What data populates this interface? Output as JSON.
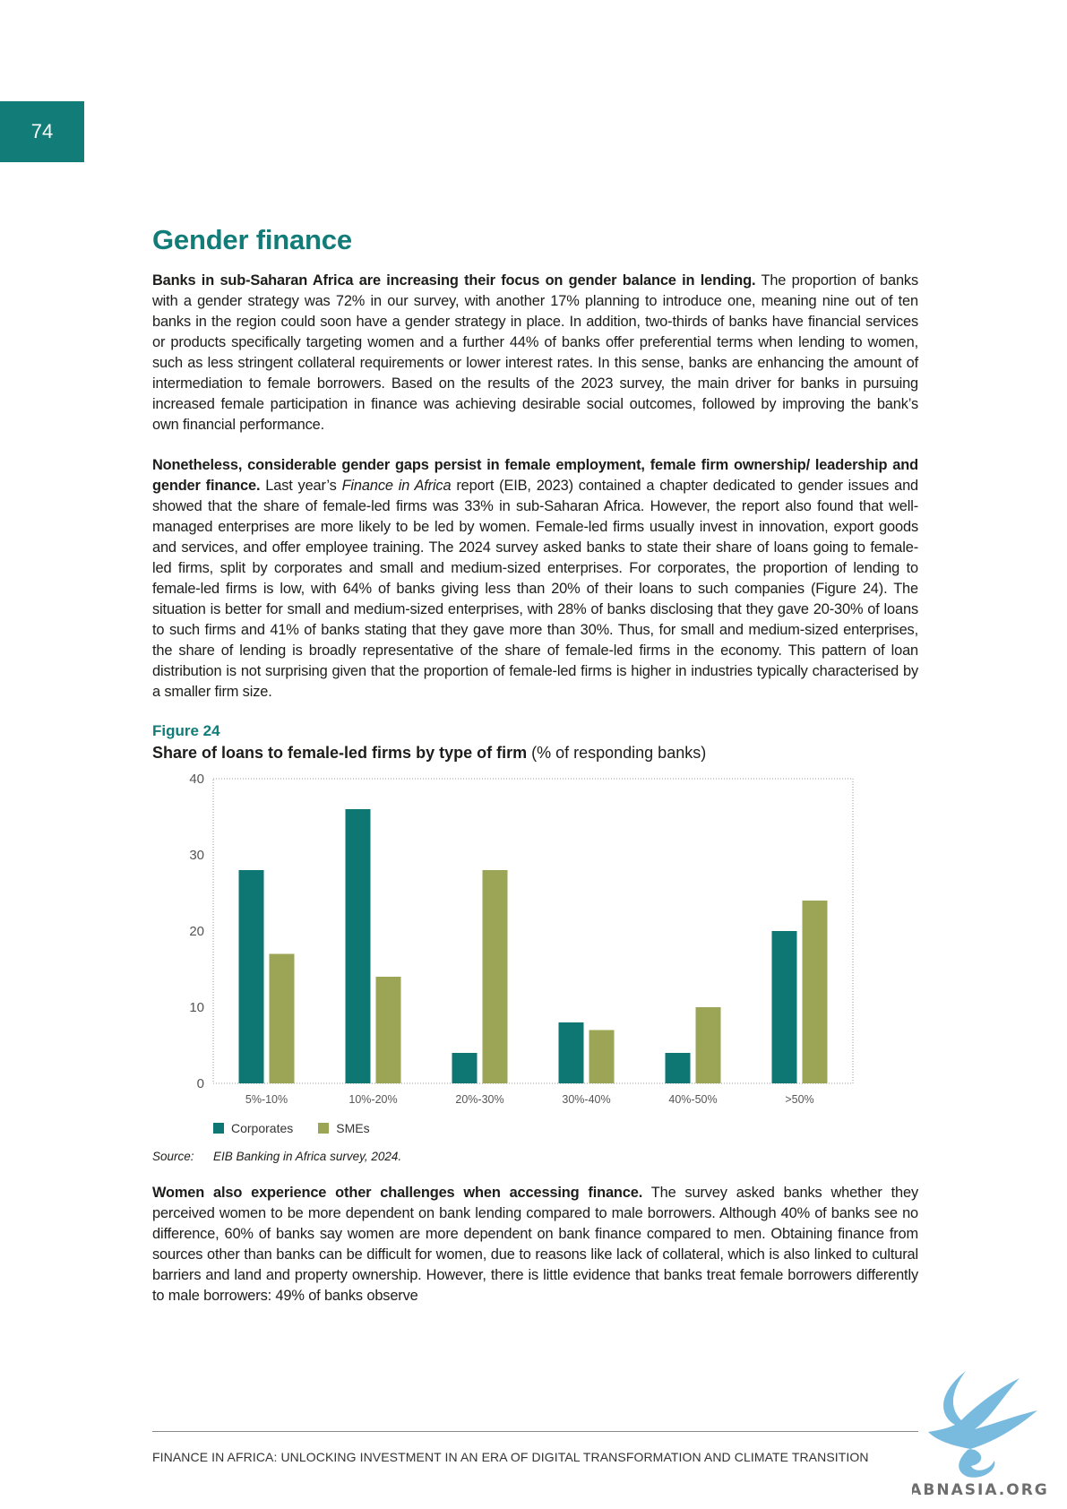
{
  "page_number": "74",
  "section_title": "Gender finance",
  "paragraphs": [
    {
      "lead": "Banks in sub-Saharan Africa are increasing their focus on gender balance in lending.",
      "text": " The proportion of banks with a gender strategy was 72% in our survey, with another 17% planning to introduce one, meaning nine out of ten banks in the region could soon have a gender strategy in place. In addition, two-thirds of banks have financial services or products specifically targeting women and a further 44% of banks offer preferential terms when lending to women, such as less stringent collateral requirements or lower interest rates. In this sense, banks are enhancing the amount of intermediation to female borrowers. Based on the results of the 2023 survey, the main driver for banks in pursuing increased female participation in finance was achieving desirable social outcomes, followed by improving the bank’s own financial performance."
    },
    {
      "lead": "Nonetheless, considerable gender gaps persist in female employment, female firm ownership/ leadership and gender finance.",
      "text_before": " Last year’s ",
      "italic": "Finance in Africa",
      "text_after": " report (EIB, 2023) contained a chapter dedicated to gender issues and showed that the share of female-led firms was 33% in sub-Saharan Africa. However, the report also found that well-managed enterprises are more likely to be led by women. Female-led firms usually invest in innovation, export goods and services, and offer employee training. The 2024 survey asked banks to state their share of loans going to female-led firms, split by corporates and small and medium-sized enterprises. For corporates, the proportion of lending to female-led firms is low, with 64% of banks giving less than 20% of their loans to such companies (Figure 24). The situation is better for small and medium-sized enterprises, with 28% of banks disclosing that they gave 20-30% of loans to such firms and 41% of banks stating that they gave more than 30%. Thus, for small and medium-sized enterprises, the share of lending is broadly representative of the share of female-led firms in the economy. This pattern of loan distribution is not surprising given that the proportion of female-led firms is higher in industries typically characterised by a smaller firm size."
    },
    {
      "lead": "Women also experience other challenges when accessing finance.",
      "text": " The survey asked banks whether they perceived women to be more dependent on bank lending compared to male borrowers. Although 40% of banks see no difference, 60% of banks say women are more dependent on bank finance compared to men. Obtaining finance from sources other than banks can be difficult for women, due to reasons like lack of collateral, which is also linked to cultural barriers and land and property ownership. However, there is little evidence that banks treat female borrowers differently to male borrowers: 49% of banks observe"
    }
  ],
  "figure": {
    "label": "Figure 24",
    "title_bold": "Share of loans to female-led firms by type of firm",
    "title_rest": " (% of responding banks)",
    "source_label": "Source:",
    "source_text": "EIB Banking in Africa survey, 2024."
  },
  "chart_data": {
    "type": "bar",
    "categories": [
      "5%-10%",
      "10%-20%",
      "20%-30%",
      "30%-40%",
      "40%-50%",
      ">50%"
    ],
    "series": [
      {
        "name": "Corporates",
        "color": "#0e7773",
        "values": [
          28,
          36,
          4,
          8,
          4,
          20
        ]
      },
      {
        "name": "SMEs",
        "color": "#9ca556",
        "values": [
          17,
          14,
          28,
          7,
          10,
          24
        ]
      }
    ],
    "ylim": [
      0,
      40
    ],
    "yticks": [
      0,
      10,
      20,
      30,
      40
    ],
    "grid": false,
    "legend_position": "bottom-left"
  },
  "footer": "FINANCE IN AFRICA: UNLOCKING INVESTMENT IN AN ERA OF DIGITAL TRANSFORMATION AND CLIMATE TRANSITION",
  "watermark": "ABNASIA.ORG",
  "colors": {
    "accent": "#117c78"
  }
}
